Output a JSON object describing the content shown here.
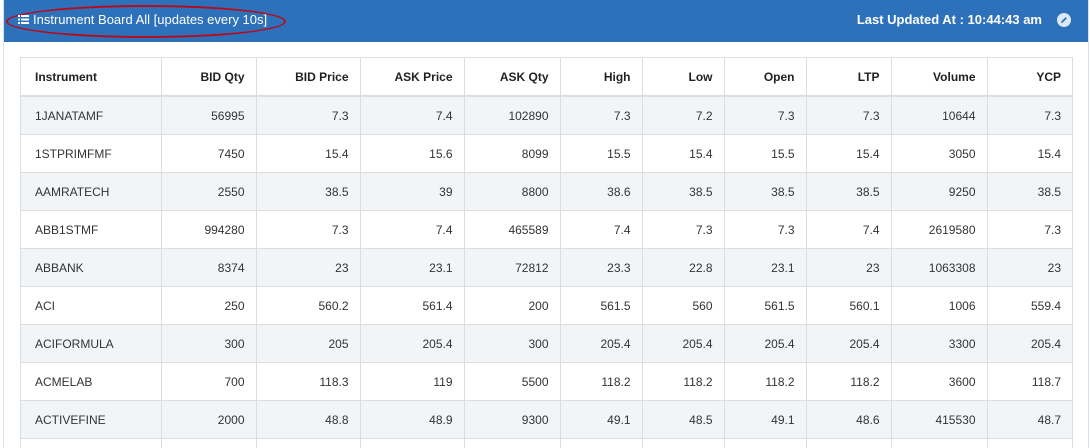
{
  "header": {
    "title": "Instrument Board All [updates every 10s]",
    "last_updated_label": "Last Updated At : 10:44:43 am",
    "tool_icon": "pencil-icon",
    "list_icon": "list-icon",
    "highlight_color": "#b80b1a",
    "bar_color": "#2d71bb"
  },
  "table": {
    "columns": [
      "Instrument",
      "BID Qty",
      "BID Price",
      "ASK Price",
      "ASK Qty",
      "High",
      "Low",
      "Open",
      "LTP",
      "Volume",
      "YCP"
    ],
    "rows": [
      [
        "1JANATAMF",
        "56995",
        "7.3",
        "7.4",
        "102890",
        "7.3",
        "7.2",
        "7.3",
        "7.3",
        "10644",
        "7.3"
      ],
      [
        "1STPRIMFMF",
        "7450",
        "15.4",
        "15.6",
        "8099",
        "15.5",
        "15.4",
        "15.5",
        "15.4",
        "3050",
        "15.4"
      ],
      [
        "AAMRATECH",
        "2550",
        "38.5",
        "39",
        "8800",
        "38.6",
        "38.5",
        "38.5",
        "38.5",
        "9250",
        "38.5"
      ],
      [
        "ABB1STMF",
        "994280",
        "7.3",
        "7.4",
        "465589",
        "7.4",
        "7.3",
        "7.3",
        "7.4",
        "2619580",
        "7.3"
      ],
      [
        "ABBANK",
        "8374",
        "23",
        "23.1",
        "72812",
        "23.3",
        "22.8",
        "23.1",
        "23",
        "1063308",
        "23"
      ],
      [
        "ACI",
        "250",
        "560.2",
        "561.4",
        "200",
        "561.5",
        "560",
        "561.5",
        "560.1",
        "1006",
        "559.4"
      ],
      [
        "ACIFORMULA",
        "300",
        "205",
        "205.4",
        "300",
        "205.4",
        "205.4",
        "205.4",
        "205.4",
        "3300",
        "205.4"
      ],
      [
        "ACMELAB",
        "700",
        "118.3",
        "119",
        "5500",
        "118.2",
        "118.2",
        "118.2",
        "118.2",
        "3600",
        "118.7"
      ],
      [
        "ACTIVEFINE",
        "2000",
        "48.8",
        "48.9",
        "9300",
        "49.1",
        "48.5",
        "49.1",
        "48.6",
        "415530",
        "48.7"
      ]
    ]
  }
}
